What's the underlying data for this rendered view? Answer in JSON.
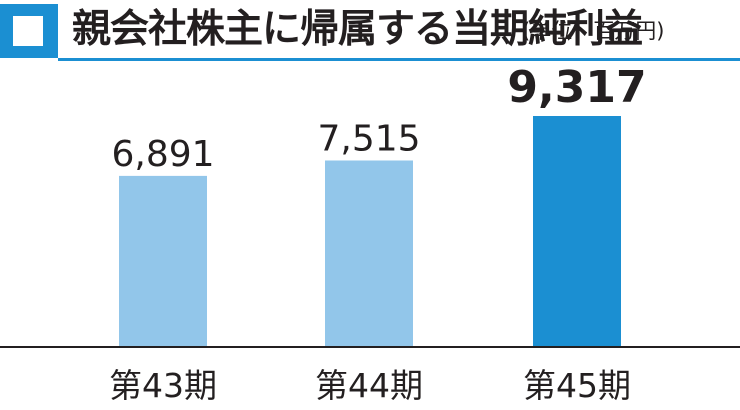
{
  "header": {
    "title": "親会社株主に帰属する当期純利益",
    "unit": "(単位：百万円)"
  },
  "colors": {
    "accent": "#1b8fd2",
    "bar_light": "#92c6ea",
    "bar_highlight": "#1b8fd2",
    "text": "#231f20",
    "axis": "#231f20"
  },
  "chart_data": {
    "type": "bar",
    "categories": [
      "第43期",
      "第44期",
      "第45期"
    ],
    "values": [
      6891,
      7515,
      9317
    ],
    "value_labels": [
      "6,891",
      "7,515",
      "9,317"
    ],
    "highlight_index": 2,
    "title": "親会社株主に帰属する当期純利益",
    "unit": "(単位：百万円)",
    "ylim": [
      0,
      9317
    ],
    "grid": false,
    "legend": "none"
  }
}
